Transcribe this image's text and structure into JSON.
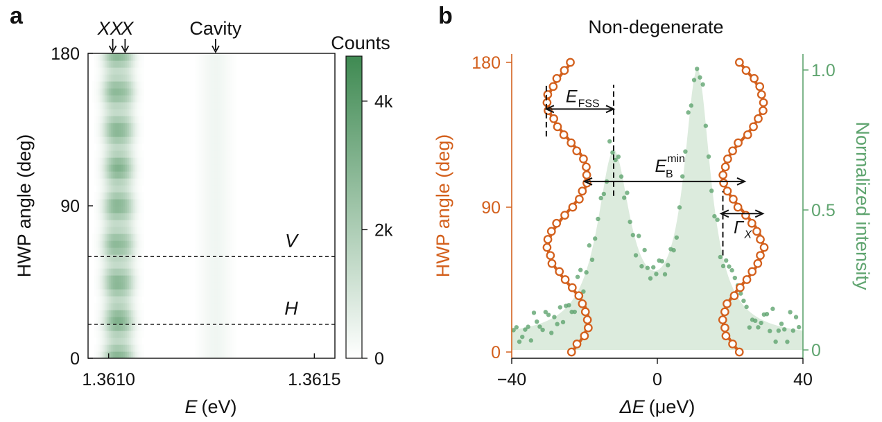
{
  "chart_data": [
    {
      "panel_label": "a",
      "type": "heatmap",
      "xlabel": "(eV)",
      "xlabel_symbol": "E",
      "ylabel": "HWP angle (deg)",
      "xlim": [
        1.36095,
        1.36155
      ],
      "ylim": [
        0,
        180
      ],
      "x_tick_labels": [
        "1.3610",
        "1.3615"
      ],
      "x_ticks": [
        1.361,
        1.3615
      ],
      "y_tick_labels": [
        "0",
        "90",
        "180"
      ],
      "y_ticks": [
        0,
        90,
        180
      ],
      "peak_labels": [
        "XX",
        "X",
        "Cavity"
      ],
      "peaks": [
        {
          "name": "XX",
          "energy": 1.36101,
          "amplitude": 2300
        },
        {
          "name": "X",
          "energy": 1.36104,
          "amplitude": 2000
        },
        {
          "name": "Cavity",
          "energy": 1.36126,
          "amplitude": 350
        }
      ],
      "oscillation_period_deg": 90,
      "oscillation_amplitude_eV": 1.5e-06,
      "intensity_modulation_period_deg": 22.5,
      "colorbar": {
        "label": "Counts",
        "min": 0,
        "max": 4700,
        "tick_values": [
          0,
          2000,
          4000
        ],
        "tick_labels": [
          "0",
          "2k",
          "4k"
        ],
        "color_low": "#ffffff",
        "color_high": "#3f8a52"
      },
      "annotations": [
        {
          "label": "V",
          "y": 60,
          "style": "dashed"
        },
        {
          "label": "H",
          "y": 20,
          "style": "dashed"
        }
      ],
      "grid": false
    },
    {
      "panel_label": "b",
      "type": "line",
      "title": "Non-degenerate",
      "xlabel": "(μeV)",
      "xlabel_symbol": "ΔE",
      "ylabel": "HWP angle (deg)",
      "y2label": "Normalized intensity",
      "xlim": [
        -40,
        40
      ],
      "ylim": [
        0,
        180
      ],
      "y2lim": [
        0,
        1.0
      ],
      "x_tick_labels": [
        "−40",
        "0",
        "40"
      ],
      "x_ticks": [
        -40,
        0,
        40
      ],
      "y_tick_labels": [
        "0",
        "90",
        "180"
      ],
      "y_ticks": [
        0,
        90,
        180
      ],
      "y2_tick_labels": [
        "0",
        "0.5",
        "1.0"
      ],
      "y2_ticks": [
        0,
        0.5,
        1.0
      ],
      "colors": {
        "angle": "#d3601d",
        "intensity": "#5fa46f",
        "intensity_fill": "#dcebdd"
      },
      "series": [
        {
          "axis": "left",
          "style": "line+open-circles",
          "center": -24.5,
          "amplitude": 5.5,
          "period_deg": 90,
          "peak_angle_deg": 20,
          "angle_range": [
            0,
            180
          ]
        },
        {
          "axis": "left",
          "style": "line+open-circles",
          "center": 23.5,
          "amplitude": 5.5,
          "period_deg": 90,
          "peak_angle_deg": 65,
          "angle_range": [
            0,
            180
          ]
        },
        {
          "axis": "right",
          "style": "filled-fit+dots",
          "peaks": [
            {
              "x": -12,
              "height": 0.68,
              "width": 5.5
            },
            {
              "x": 11,
              "height": 0.97,
              "width": 4.5
            }
          ],
          "baseline": 0.04
        }
      ],
      "annotations": [
        {
          "label": "E",
          "subscript": "FSS",
          "from_x": -30.5,
          "to_x": -12,
          "y": 151
        },
        {
          "label": "E",
          "subscript": "B",
          "superscript": "min",
          "from_x": -20,
          "to_x": 24,
          "y": 106
        },
        {
          "label": "Γ",
          "subscript": "X",
          "from_x": 17.5,
          "to_x": 29,
          "y": 86
        },
        {
          "dashed_vertical": -30.5,
          "y_range": [
            134,
            166
          ]
        },
        {
          "dashed_vertical": -12,
          "y_range": [
            97,
            166
          ]
        },
        {
          "dashed_vertical": 18,
          "y_range": [
            60,
            100
          ]
        }
      ],
      "grid": false
    }
  ]
}
